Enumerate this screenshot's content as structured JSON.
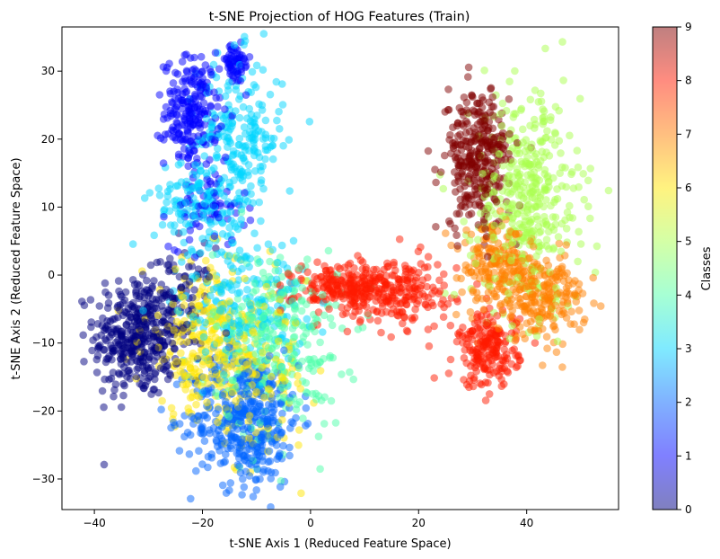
{
  "chart_data": {
    "type": "scatter",
    "title": "t-SNE Projection of HOG Features (Train)",
    "xlabel": "t-SNE Axis 1 (Reduced Feature Space)",
    "ylabel": "t-SNE Axis 2 (Reduced Feature Space)",
    "xlim": [
      -46,
      57
    ],
    "ylim": [
      -34.5,
      36.5
    ],
    "xticks": [
      -40,
      -20,
      0,
      20,
      40
    ],
    "yticks": [
      -30,
      -20,
      -10,
      0,
      10,
      20,
      30
    ],
    "grid": false,
    "colormap": "jet",
    "marker_alpha": 0.5,
    "colorbar": {
      "label": "Classes",
      "range": [
        0,
        9
      ],
      "ticks": [
        0,
        1,
        2,
        3,
        4,
        5,
        6,
        7,
        8,
        9
      ]
    },
    "class_colors": [
      "#00007f",
      "#0000ff",
      "#0063ff",
      "#00d5ff",
      "#4effa9",
      "#a9ff4e",
      "#ffe600",
      "#ff7f00",
      "#ff1a00",
      "#7f0000"
    ],
    "clusters": [
      {
        "class": 0,
        "center": [
          -32,
          -9
        ],
        "spread": [
          4,
          4.5
        ],
        "count": 380
      },
      {
        "class": 0,
        "center": [
          -24,
          -4
        ],
        "spread": [
          3,
          4
        ],
        "count": 80
      },
      {
        "class": 1,
        "center": [
          -22,
          24
        ],
        "spread": [
          2.5,
          4
        ],
        "count": 220
      },
      {
        "class": 1,
        "center": [
          -14,
          31
        ],
        "spread": [
          1.5,
          1.5
        ],
        "count": 60
      },
      {
        "class": 1,
        "center": [
          -19,
          10
        ],
        "spread": [
          3.5,
          3
        ],
        "count": 70
      },
      {
        "class": 2,
        "center": [
          -12,
          -21
        ],
        "spread": [
          5,
          5
        ],
        "count": 420
      },
      {
        "class": 3,
        "center": [
          -13,
          20
        ],
        "spread": [
          4,
          6
        ],
        "count": 220
      },
      {
        "class": 3,
        "center": [
          -21,
          11
        ],
        "spread": [
          4,
          3.5
        ],
        "count": 130
      },
      {
        "class": 3,
        "center": [
          -13,
          -4
        ],
        "spread": [
          6,
          5
        ],
        "count": 220
      },
      {
        "class": 4,
        "center": [
          -6,
          -10
        ],
        "spread": [
          6,
          7
        ],
        "count": 300
      },
      {
        "class": 5,
        "center": [
          40,
          11
        ],
        "spread": [
          5,
          8
        ],
        "count": 420
      },
      {
        "class": 6,
        "center": [
          -19,
          -10
        ],
        "spread": [
          6,
          6
        ],
        "count": 280
      },
      {
        "class": 6,
        "center": [
          -10,
          -15
        ],
        "spread": [
          5,
          5
        ],
        "count": 120
      },
      {
        "class": 7,
        "center": [
          34,
          2
        ],
        "spread": [
          3,
          2.5
        ],
        "count": 140
      },
      {
        "class": 7,
        "center": [
          42,
          -3
        ],
        "spread": [
          4.5,
          3
        ],
        "count": 260
      },
      {
        "class": 8,
        "center": [
          9,
          -2
        ],
        "spread": [
          6,
          2
        ],
        "count": 320
      },
      {
        "class": 8,
        "center": [
          33,
          -11
        ],
        "spread": [
          2.8,
          2.8
        ],
        "count": 200
      },
      {
        "class": 8,
        "center": [
          19,
          -3
        ],
        "spread": [
          4,
          3
        ],
        "count": 80
      },
      {
        "class": 9,
        "center": [
          31,
          17
        ],
        "spread": [
          3,
          5
        ],
        "count": 320
      }
    ]
  }
}
